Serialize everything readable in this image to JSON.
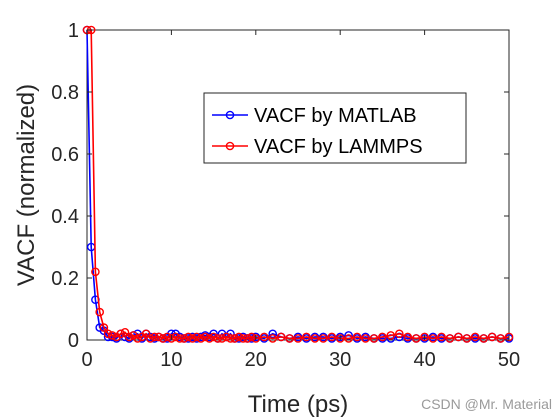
{
  "chart_data": {
    "type": "line",
    "title": "",
    "xlabel": "Time (ps)",
    "ylabel": "VACF (normalized)",
    "xlim": [
      0,
      50
    ],
    "ylim": [
      0,
      1
    ],
    "xticks": [
      0,
      10,
      20,
      30,
      40,
      50
    ],
    "yticks": [
      0,
      0.2,
      0.4,
      0.6,
      0.8,
      1
    ],
    "xtick_labels": [
      "0",
      "10",
      "20",
      "30",
      "40",
      "50"
    ],
    "ytick_labels": [
      "0",
      "0.2",
      "0.4",
      "0.6",
      "0.8",
      "1"
    ],
    "grid": false,
    "legend_position": "upper-right",
    "series": [
      {
        "name": "VACF by MATLAB",
        "color": "#0000ff",
        "x": [
          0,
          0.5,
          1,
          1.5,
          2,
          2.5,
          3,
          3.5,
          4,
          4.5,
          5,
          5.5,
          6,
          6.5,
          7,
          7.5,
          8,
          8.5,
          9,
          9.5,
          10,
          10.5,
          11,
          11.5,
          12,
          12.5,
          13,
          13.5,
          14,
          14.5,
          15,
          15.5,
          16,
          16.5,
          17,
          17.5,
          18,
          18.5,
          19,
          19.5,
          20,
          21,
          22,
          23,
          24,
          25,
          26,
          27,
          28,
          29,
          30,
          31,
          32,
          33,
          34,
          35,
          36,
          37,
          38,
          39,
          40,
          41,
          42,
          43,
          44,
          45,
          46,
          47,
          48,
          49,
          50
        ],
        "y": [
          1.0,
          0.3,
          0.13,
          0.04,
          0.03,
          0.01,
          0.01,
          0.005,
          0.02,
          0.01,
          0.005,
          0.015,
          0.02,
          0.005,
          0.02,
          0.01,
          0.005,
          0.01,
          0.005,
          0.005,
          0.02,
          0.02,
          0.01,
          0.005,
          0.005,
          0.01,
          0.005,
          0.01,
          0.015,
          0.01,
          0.02,
          0.005,
          0.02,
          0.01,
          0.02,
          0.005,
          0.005,
          0.01,
          0.005,
          0.005,
          0.01,
          0.005,
          0.02,
          0.01,
          0.005,
          0.01,
          0.005,
          0.01,
          0.01,
          0.005,
          0.01,
          0.015,
          0.005,
          0.01,
          0.005,
          0.005,
          0.005,
          0.01,
          0.005,
          0.005,
          0.005,
          0.01,
          0.005,
          0.005,
          0.01,
          0.005,
          0.005,
          0.005,
          0.01,
          0.005,
          0.005
        ]
      },
      {
        "name": "VACF by LAMMPS",
        "color": "#ff0000",
        "x": [
          0,
          0.5,
          1,
          1.5,
          2,
          2.5,
          3,
          3.5,
          4,
          4.5,
          5,
          5.5,
          6,
          6.5,
          7,
          7.5,
          8,
          8.5,
          9,
          9.5,
          10,
          10.5,
          11,
          11.5,
          12,
          12.5,
          13,
          13.5,
          14,
          14.5,
          15,
          15.5,
          16,
          16.5,
          17,
          17.5,
          18,
          18.5,
          19,
          19.5,
          20,
          21,
          22,
          23,
          24,
          25,
          26,
          27,
          28,
          29,
          30,
          31,
          32,
          33,
          34,
          35,
          36,
          37,
          38,
          39,
          40,
          41,
          42,
          43,
          44,
          45,
          46,
          47,
          48,
          49,
          50
        ],
        "y": [
          1.0,
          1.0,
          0.22,
          0.09,
          0.04,
          0.02,
          0.015,
          0.01,
          0.02,
          0.025,
          0.01,
          0.015,
          0.005,
          0.01,
          0.02,
          0.005,
          0.01,
          0.01,
          0.005,
          0.01,
          0.005,
          0.01,
          0.005,
          0.005,
          0.01,
          0.005,
          0.01,
          0.005,
          0.01,
          0.005,
          0.01,
          0.005,
          0.005,
          0.01,
          0.005,
          0.005,
          0.01,
          0.005,
          0.005,
          0.01,
          0.005,
          0.01,
          0.005,
          0.01,
          0.005,
          0.005,
          0.01,
          0.005,
          0.005,
          0.01,
          0.005,
          0.005,
          0.01,
          0.005,
          0.005,
          0.01,
          0.015,
          0.02,
          0.01,
          0.005,
          0.01,
          0.005,
          0.01,
          0.005,
          0.01,
          0.005,
          0.01,
          0.005,
          0.01,
          0.005,
          0.01
        ]
      }
    ]
  },
  "watermark": "CSDN @Mr. Material"
}
